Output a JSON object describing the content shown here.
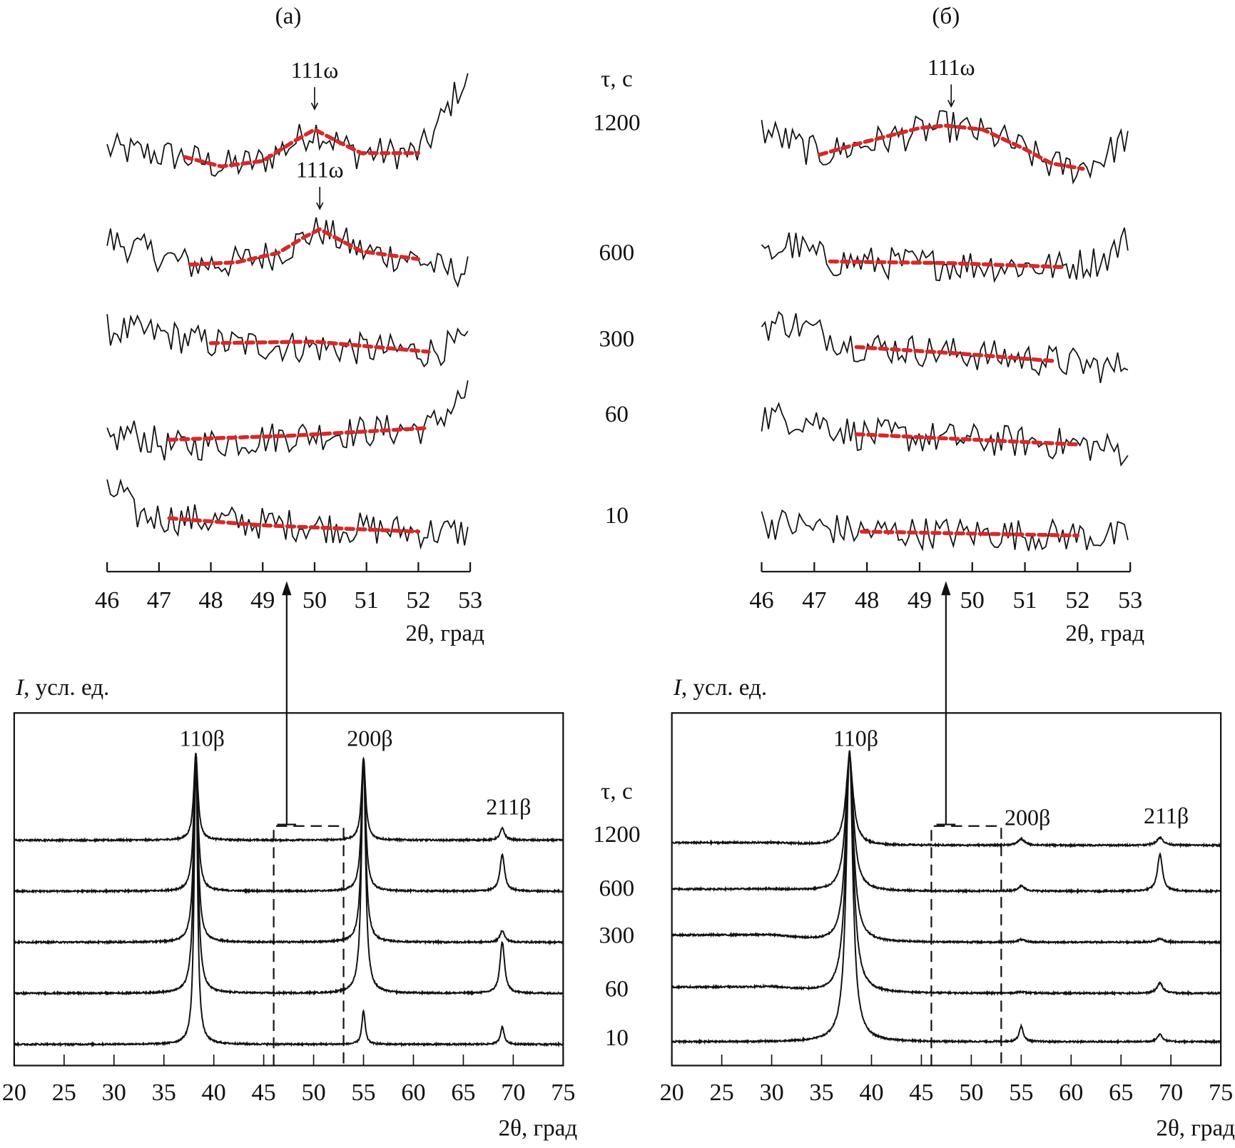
{
  "figure": {
    "panel_a_label": "(а)",
    "panel_b_label": "(б)",
    "tau_label": "τ, с",
    "tau_values": [
      "1200",
      "600",
      "300",
      "60",
      "10"
    ],
    "x_label": "2θ, град",
    "y_label_italic": "I",
    "y_label_rest": ", усл. ед.",
    "omega_peak_base": "111",
    "omega_peak_sub": "ω"
  },
  "colors": {
    "trace": "#111111",
    "fit": "#d42a2a",
    "axis": "#111111"
  },
  "chart_data": [
    {
      "id": "a-zoom",
      "type": "line",
      "xlabel": "2θ, град",
      "xlim": [
        46,
        53
      ],
      "xticks": [
        46,
        47,
        48,
        49,
        50,
        51,
        52,
        53
      ],
      "series": [
        {
          "name": "1200",
          "trend": [
            [
              46,
              55
            ],
            [
              47.5,
              54
            ],
            [
              48.2,
              52.8
            ],
            [
              49,
              53.5
            ],
            [
              50,
              57.5
            ],
            [
              50.8,
              54.5
            ],
            [
              52,
              54.5
            ],
            [
              52.3,
              57
            ],
            [
              52.8,
              63
            ],
            [
              53,
              63.5
            ]
          ],
          "fit": [
            [
              47.5,
              54
            ],
            [
              48.2,
              52.8
            ],
            [
              49,
              53.5
            ],
            [
              49.6,
              56
            ],
            [
              50,
              57.5
            ],
            [
              50.5,
              55.8
            ],
            [
              50.9,
              54.5
            ],
            [
              52,
              54.5
            ]
          ]
        },
        {
          "name": "600",
          "trend": [
            [
              46,
              43.5
            ],
            [
              47.6,
              40.3
            ],
            [
              48.5,
              40.6
            ],
            [
              49.3,
              41.8
            ],
            [
              50.1,
              44.8
            ],
            [
              50.9,
              42
            ],
            [
              52,
              41
            ],
            [
              52.5,
              39.5
            ],
            [
              53,
              39.5
            ]
          ],
          "fit": [
            [
              47.6,
              40.3
            ],
            [
              48.5,
              40.6
            ],
            [
              49.3,
              41.8
            ],
            [
              49.8,
              43.8
            ],
            [
              50.1,
              44.8
            ],
            [
              50.5,
              43.4
            ],
            [
              50.9,
              42
            ],
            [
              52,
              41
            ]
          ]
        },
        {
          "name": "300",
          "trend": [
            [
              46,
              32
            ],
            [
              47,
              31.5
            ],
            [
              48,
              30.3
            ],
            [
              52.2,
              29.2
            ],
            [
              53,
              30.5
            ]
          ],
          "fit": [
            [
              48,
              30.3
            ],
            [
              50,
              30.5
            ],
            [
              52.2,
              29.2
            ]
          ]
        },
        {
          "name": "60",
          "trend": [
            [
              46,
              17.5
            ],
            [
              46.4,
              19
            ],
            [
              47.2,
              17
            ],
            [
              49.5,
              18.5
            ],
            [
              52.2,
              19.5
            ],
            [
              52.7,
              22.5
            ],
            [
              53,
              24.5
            ]
          ],
          "fit": [
            [
              47.2,
              18
            ],
            [
              49.5,
              18.5
            ],
            [
              52.2,
              19.5
            ]
          ]
        },
        {
          "name": "10",
          "trend": [
            [
              46,
              11
            ],
            [
              46.3,
              11.5
            ],
            [
              46.5,
              8.5
            ],
            [
              47.2,
              8
            ],
            [
              52,
              6.3
            ],
            [
              53,
              6.2
            ]
          ],
          "fit": [
            [
              47.2,
              8
            ],
            [
              49,
              7.1
            ],
            [
              52,
              6.3
            ]
          ]
        }
      ],
      "annotations": [
        {
          "text": "111ω",
          "series": "1200",
          "x": 50.0
        },
        {
          "text": "111ω",
          "series": "600",
          "x": 50.1
        }
      ]
    },
    {
      "id": "b-zoom",
      "type": "line",
      "xlabel": "2θ, град",
      "xlim": [
        46,
        53
      ],
      "xticks": [
        46,
        47,
        48,
        49,
        50,
        51,
        52,
        53
      ],
      "series": [
        {
          "name": "1200",
          "trend": [
            [
              46,
              57.5
            ],
            [
              47.1,
              54.3
            ],
            [
              49.5,
              58
            ],
            [
              50.5,
              56.5
            ],
            [
              51.5,
              53
            ],
            [
              52,
              52.5
            ],
            [
              52.5,
              54
            ],
            [
              53,
              57
            ]
          ],
          "fit": [
            [
              47.1,
              54.3
            ],
            [
              48,
              56
            ],
            [
              49,
              57.7
            ],
            [
              49.5,
              58
            ],
            [
              50.2,
              57.5
            ],
            [
              51,
              55
            ],
            [
              51.5,
              53.2
            ],
            [
              52.1,
              52.5
            ]
          ]
        },
        {
          "name": "600",
          "trend": [
            [
              46,
              41
            ],
            [
              46.5,
              43
            ],
            [
              47.3,
              40.7
            ],
            [
              51.7,
              40
            ],
            [
              52.5,
              41
            ],
            [
              53,
              44
            ]
          ],
          "fit": [
            [
              47.3,
              40.7
            ],
            [
              49.5,
              40.5
            ],
            [
              51.7,
              40
            ]
          ]
        },
        {
          "name": "300",
          "trend": [
            [
              46,
              32.5
            ],
            [
              46.5,
              33
            ],
            [
              47.8,
              30
            ],
            [
              51.6,
              28
            ],
            [
              52.7,
              27
            ],
            [
              53,
              28.5
            ]
          ],
          "fit": [
            [
              47.8,
              29.8
            ],
            [
              49.7,
              29
            ],
            [
              51.6,
              28
            ]
          ]
        },
        {
          "name": "60",
          "trend": [
            [
              46,
              21
            ],
            [
              47,
              20.5
            ],
            [
              47.8,
              18.7
            ],
            [
              52,
              17.4
            ],
            [
              53,
              16.5
            ]
          ],
          "fit": [
            [
              47.8,
              18.7
            ],
            [
              52,
              17.4
            ]
          ]
        },
        {
          "name": "10",
          "trend": [
            [
              46,
              7.5
            ],
            [
              47.9,
              6.3
            ],
            [
              52,
              5.8
            ],
            [
              53,
              5.5
            ]
          ],
          "fit": [
            [
              47.9,
              6.3
            ],
            [
              52,
              5.8
            ]
          ]
        }
      ],
      "annotations": [
        {
          "text": "111ω",
          "series": "1200",
          "x": 49.6
        }
      ]
    },
    {
      "id": "a-full",
      "type": "line",
      "xlabel": "2θ, град",
      "ylabel": "I, усл. ед.",
      "xlim": [
        20,
        75
      ],
      "xticks": [
        20,
        25,
        30,
        35,
        40,
        45,
        50,
        55,
        60,
        65,
        70,
        75
      ],
      "zoom_region": [
        46,
        53
      ],
      "peak_labels": [
        {
          "text": "110β",
          "x": 38.2
        },
        {
          "text": "200β",
          "x": 55.0
        },
        {
          "text": "211β",
          "x": 68.9
        }
      ],
      "series": [
        {
          "name": "1200",
          "offset": 4.4,
          "peaks": [
            [
              38.2,
              1.7,
              0.5
            ],
            [
              55.0,
              1.6,
              0.5
            ],
            [
              68.9,
              0.23,
              0.55
            ]
          ]
        },
        {
          "name": "600",
          "offset": 3.4,
          "peaks": [
            [
              38.2,
              2.7,
              0.5
            ],
            [
              55.0,
              2.6,
              0.5
            ],
            [
              68.9,
              0.72,
              0.55
            ]
          ]
        },
        {
          "name": "300",
          "offset": 2.4,
          "peaks": [
            [
              38.2,
              3.7,
              0.5
            ],
            [
              55.0,
              3.6,
              0.5
            ],
            [
              68.9,
              0.23,
              0.55
            ]
          ]
        },
        {
          "name": "60",
          "offset": 1.4,
          "peaks": [
            [
              38.2,
              4.7,
              0.5
            ],
            [
              55.0,
              4.6,
              0.5
            ],
            [
              68.9,
              1.0,
              0.55
            ]
          ]
        },
        {
          "name": "10",
          "offset": 0.4,
          "peaks": [
            [
              38.2,
              5.7,
              0.4
            ],
            [
              55.0,
              0.65,
              0.4
            ],
            [
              68.9,
              0.34,
              0.45
            ]
          ]
        }
      ]
    },
    {
      "id": "b-full",
      "type": "line",
      "xlabel": "2θ, град",
      "ylabel": "I, усл. ед.",
      "xlim": [
        20,
        75
      ],
      "xticks": [
        20,
        25,
        30,
        35,
        40,
        45,
        50,
        55,
        60,
        65,
        70,
        75
      ],
      "zoom_region": [
        46,
        53
      ],
      "peak_labels": [
        {
          "text": "110β",
          "x": 37.8
        },
        {
          "text": "200β",
          "x": 55.0
        },
        {
          "text": "211β",
          "x": 68.9
        }
      ],
      "series": [
        {
          "name": "1200",
          "offset": 4.3,
          "bg_low": 0.05,
          "peaks": [
            [
              37.8,
              1.7,
              0.9
            ],
            [
              55.0,
              0.12,
              0.8
            ],
            [
              68.9,
              0.15,
              0.8
            ]
          ]
        },
        {
          "name": "600",
          "offset": 3.4,
          "bg_low": 0.04,
          "peaks": [
            [
              37.8,
              2.7,
              0.9
            ],
            [
              55.0,
              0.1,
              0.8
            ],
            [
              68.9,
              0.72,
              0.6
            ]
          ]
        },
        {
          "name": "300",
          "offset": 2.4,
          "bg_low": 0.14,
          "peaks": [
            [
              37.8,
              3.7,
              0.9
            ],
            [
              55.0,
              0.05,
              0.8
            ],
            [
              68.9,
              0.07,
              0.8
            ]
          ]
        },
        {
          "name": "60",
          "offset": 1.4,
          "bg_low": 0.12,
          "peaks": [
            [
              37.8,
              4.7,
              0.9
            ],
            [
              55.0,
              0.03,
              0.8
            ],
            [
              68.9,
              0.2,
              0.7
            ]
          ]
        },
        {
          "name": "10",
          "offset": 0.45,
          "bg_low": 0.0,
          "peaks": [
            [
              37.8,
              5.7,
              0.8
            ],
            [
              55.0,
              0.3,
              0.5
            ],
            [
              68.9,
              0.15,
              0.6
            ]
          ]
        }
      ]
    }
  ]
}
